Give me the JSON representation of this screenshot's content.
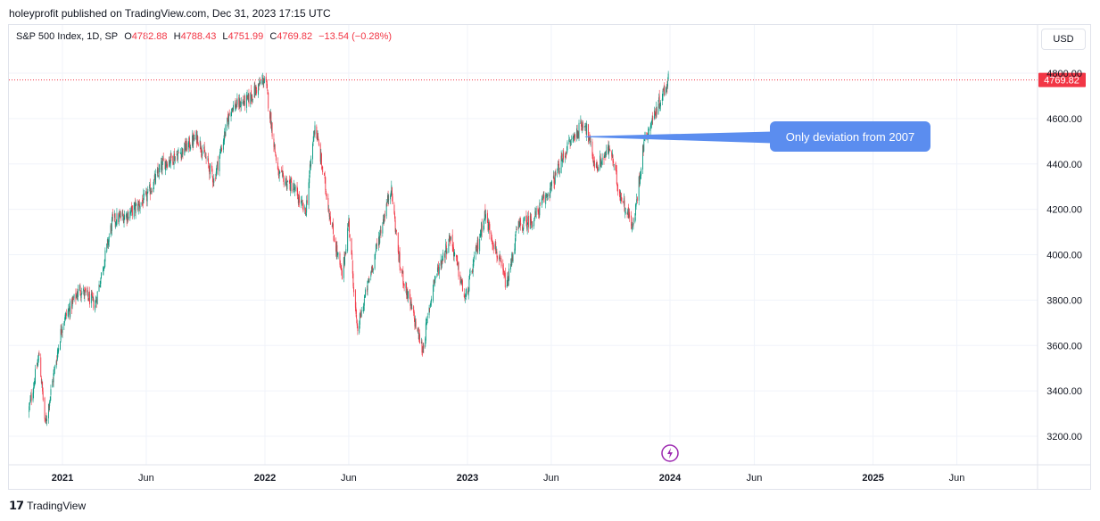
{
  "header": {
    "published_text": "holeyprofit published on TradingView.com, Dec 31, 2023 17:15 UTC"
  },
  "legend": {
    "symbol": "S&P 500 Index, 1D, SP",
    "o_label": "O",
    "o_value": "4782.88",
    "h_label": "H",
    "h_value": "4788.43",
    "l_label": "L",
    "l_value": "4751.99",
    "c_label": "C",
    "c_value": "4769.82",
    "change": "−13.54 (−0.28%)"
  },
  "currency_button": "USD",
  "footer": {
    "brand": "TradingView",
    "logo_icon": "tradingview-logo-icon"
  },
  "chart_data": {
    "type": "candlestick",
    "symbol": "S&P 500 Index",
    "interval": "1D",
    "ylim": [
      3140,
      4870
    ],
    "y_ticks": [
      "3200.00",
      "3400.00",
      "3600.00",
      "3800.00",
      "4000.00",
      "4200.00",
      "4400.00",
      "4600.00",
      "4800.00"
    ],
    "x_ticks": [
      "2021",
      "Jun",
      "2022",
      "Jun",
      "2023",
      "Jun",
      "2024",
      "Jun",
      "2025",
      "Jun"
    ],
    "last_price_label": "4769.82",
    "last_price": 4769.82,
    "up_color": "#089981",
    "down_color": "#f23645",
    "annotation": {
      "text": "Only deviation from 2007",
      "anchor_date": "2023-08-01",
      "anchor_price": 4520,
      "color": "#5b8def"
    },
    "series_closes": [
      {
        "date": "2020-11-01",
        "close": 3310
      },
      {
        "date": "2020-11-20",
        "close": 3560
      },
      {
        "date": "2020-12-01",
        "close": 3250
      },
      {
        "date": "2021-01-01",
        "close": 3700
      },
      {
        "date": "2021-02-01",
        "close": 3850
      },
      {
        "date": "2021-03-01",
        "close": 3780
      },
      {
        "date": "2021-04-01",
        "close": 4150
      },
      {
        "date": "2021-05-01",
        "close": 4180
      },
      {
        "date": "2021-06-01",
        "close": 4250
      },
      {
        "date": "2021-07-01",
        "close": 4400
      },
      {
        "date": "2021-08-01",
        "close": 4450
      },
      {
        "date": "2021-09-01",
        "close": 4520
      },
      {
        "date": "2021-10-01",
        "close": 4330
      },
      {
        "date": "2021-11-01",
        "close": 4650
      },
      {
        "date": "2021-12-01",
        "close": 4680
      },
      {
        "date": "2022-01-01",
        "close": 4780
      },
      {
        "date": "2022-01-25",
        "close": 4350
      },
      {
        "date": "2022-02-20",
        "close": 4300
      },
      {
        "date": "2022-03-15",
        "close": 4180
      },
      {
        "date": "2022-04-01",
        "close": 4580
      },
      {
        "date": "2022-05-01",
        "close": 4130
      },
      {
        "date": "2022-05-20",
        "close": 3900
      },
      {
        "date": "2022-06-01",
        "close": 4150
      },
      {
        "date": "2022-06-16",
        "close": 3660
      },
      {
        "date": "2022-07-01",
        "close": 3820
      },
      {
        "date": "2022-08-16",
        "close": 4300
      },
      {
        "date": "2022-09-01",
        "close": 3950
      },
      {
        "date": "2022-10-12",
        "close": 3580
      },
      {
        "date": "2022-11-01",
        "close": 3880
      },
      {
        "date": "2022-12-01",
        "close": 4080
      },
      {
        "date": "2022-12-28",
        "close": 3800
      },
      {
        "date": "2023-02-01",
        "close": 4180
      },
      {
        "date": "2023-03-13",
        "close": 3860
      },
      {
        "date": "2023-04-01",
        "close": 4120
      },
      {
        "date": "2023-05-01",
        "close": 4160
      },
      {
        "date": "2023-06-01",
        "close": 4300
      },
      {
        "date": "2023-07-01",
        "close": 4480
      },
      {
        "date": "2023-07-31",
        "close": 4590
      },
      {
        "date": "2023-08-20",
        "close": 4380
      },
      {
        "date": "2023-09-15",
        "close": 4470
      },
      {
        "date": "2023-10-01",
        "close": 4280
      },
      {
        "date": "2023-10-27",
        "close": 4120
      },
      {
        "date": "2023-11-15",
        "close": 4500
      },
      {
        "date": "2023-12-01",
        "close": 4600
      },
      {
        "date": "2023-12-29",
        "close": 4770
      }
    ]
  }
}
